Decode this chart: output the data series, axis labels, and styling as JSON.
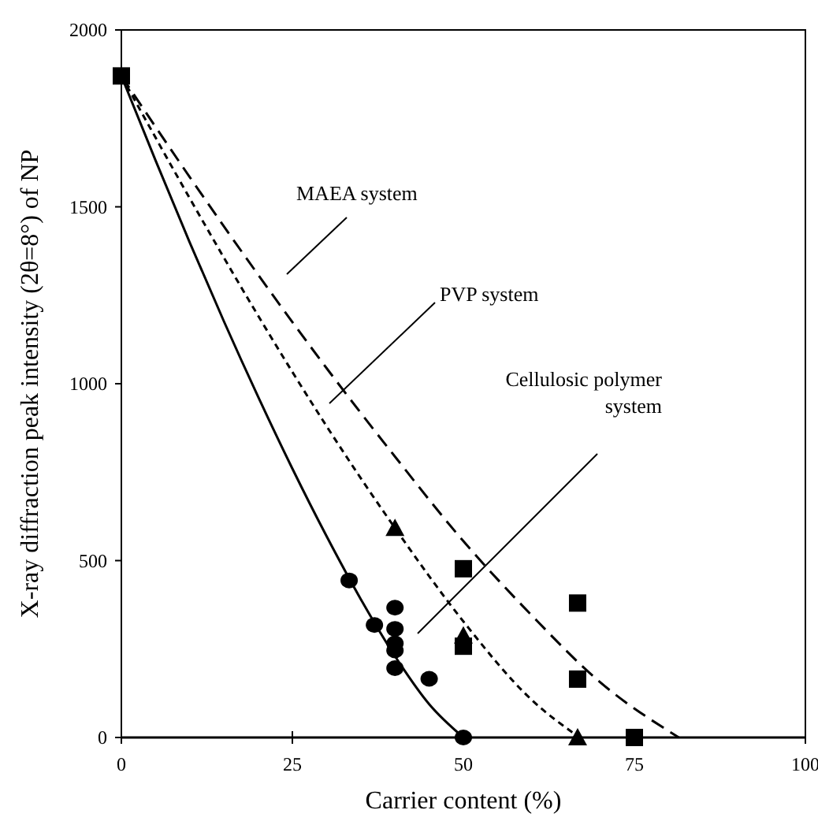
{
  "chart_data": {
    "type": "scatter",
    "xlabel": "Carrier content (%)",
    "ylabel": "X-ray diffraction peak intensity (2θ=8°) of NP",
    "xlim": [
      0,
      100
    ],
    "ylim": [
      0,
      2000
    ],
    "xticks": [
      0,
      25,
      50,
      75,
      100
    ],
    "yticks": [
      0,
      500,
      1000,
      1500,
      2000
    ],
    "grid": false,
    "annotations": [
      "MAEA system",
      "PVP system",
      "Cellulosic polymer\nsystem"
    ],
    "series": [
      {
        "marker": "circle",
        "color": "#000000",
        "x": [
          33.3,
          37,
          40,
          40,
          40,
          40,
          40,
          45,
          50
        ],
        "values": [
          444,
          318,
          367,
          307,
          266,
          246,
          196,
          166,
          0
        ]
      },
      {
        "marker": "triangle",
        "color": "#000000",
        "x": [
          40,
          50,
          66.7
        ],
        "values": [
          592,
          288,
          0
        ]
      },
      {
        "marker": "square",
        "color": "#000000",
        "x": [
          0,
          50,
          50,
          66.7,
          66.7,
          75
        ],
        "values": [
          1870,
          477,
          258,
          380,
          165,
          0
        ]
      },
      {
        "type": "line",
        "marker": "none",
        "line_style": "solid",
        "color": "#000000",
        "x": [
          0,
          5,
          10,
          15,
          20,
          25,
          30,
          35,
          40,
          45,
          50
        ],
        "values": [
          1870,
          1631,
          1399,
          1176,
          963,
          760,
          569,
          391,
          230,
          94,
          0
        ]
      },
      {
        "type": "line",
        "marker": "none",
        "line_style": "dotted",
        "color": "#000000",
        "x": [
          0,
          10,
          20,
          30,
          40,
          50,
          60,
          67
        ],
        "values": [
          1870,
          1524,
          1192,
          880,
          592,
          328,
          106,
          0
        ]
      },
      {
        "type": "line",
        "marker": "none",
        "line_style": "dashed",
        "color": "#000000",
        "x": [
          0,
          10,
          20,
          30,
          40,
          50,
          60,
          70,
          81.5
        ],
        "values": [
          1870,
          1584,
          1308,
          1044,
          794,
          555,
          345,
          156,
          0
        ]
      }
    ]
  }
}
